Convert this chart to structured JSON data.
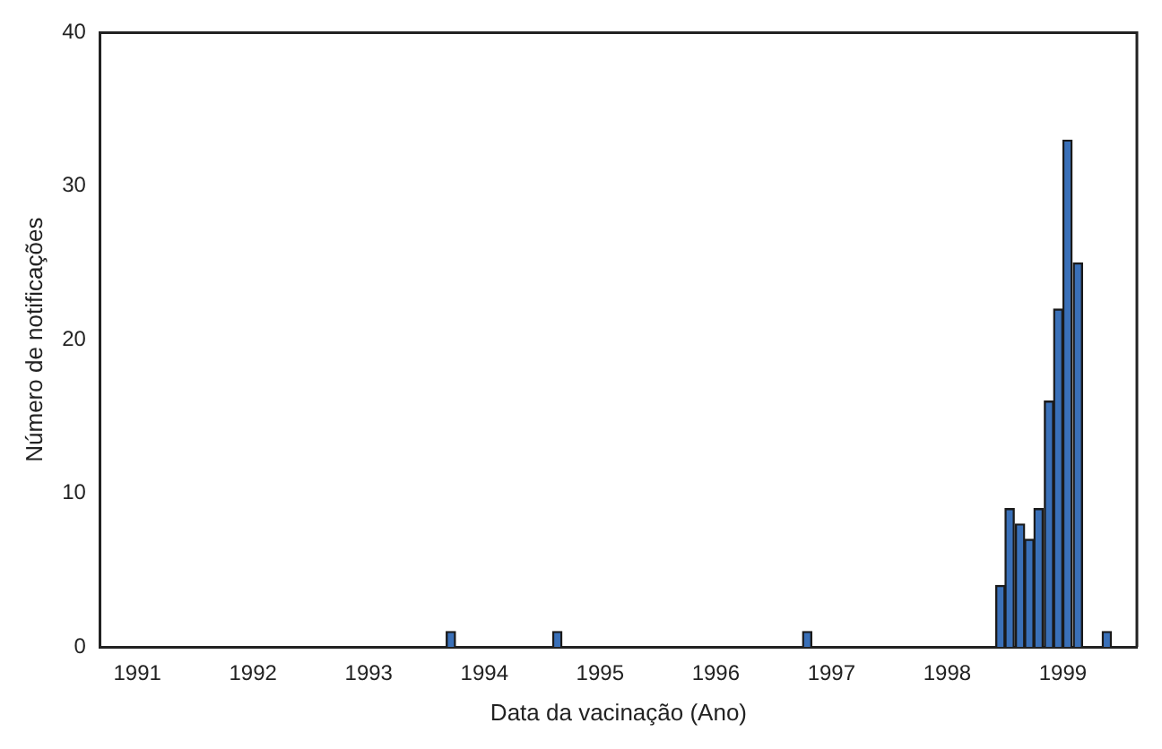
{
  "chart_data": {
    "type": "bar",
    "xlabel": "Data da vacinação (Ano)",
    "ylabel": "Número de notificações",
    "x": [
      1993.71,
      1994.63,
      1996.79,
      1998.46,
      1998.54,
      1998.63,
      1998.71,
      1998.79,
      1998.88,
      1998.96,
      1999.04,
      1999.13,
      1999.38
    ],
    "values": [
      1,
      1,
      1,
      4,
      9,
      8,
      7,
      9,
      16,
      22,
      33,
      25,
      1
    ],
    "color": "#3a70b8",
    "xlim": [
      1990.68,
      1999.64
    ],
    "xticks": [
      1991,
      1992,
      1993,
      1994,
      1995,
      1996,
      1997,
      1998,
      1999
    ],
    "ylim": [
      0,
      40
    ],
    "yticks": [
      0,
      10,
      20,
      30,
      40
    ],
    "grid": false,
    "legend": false
  }
}
